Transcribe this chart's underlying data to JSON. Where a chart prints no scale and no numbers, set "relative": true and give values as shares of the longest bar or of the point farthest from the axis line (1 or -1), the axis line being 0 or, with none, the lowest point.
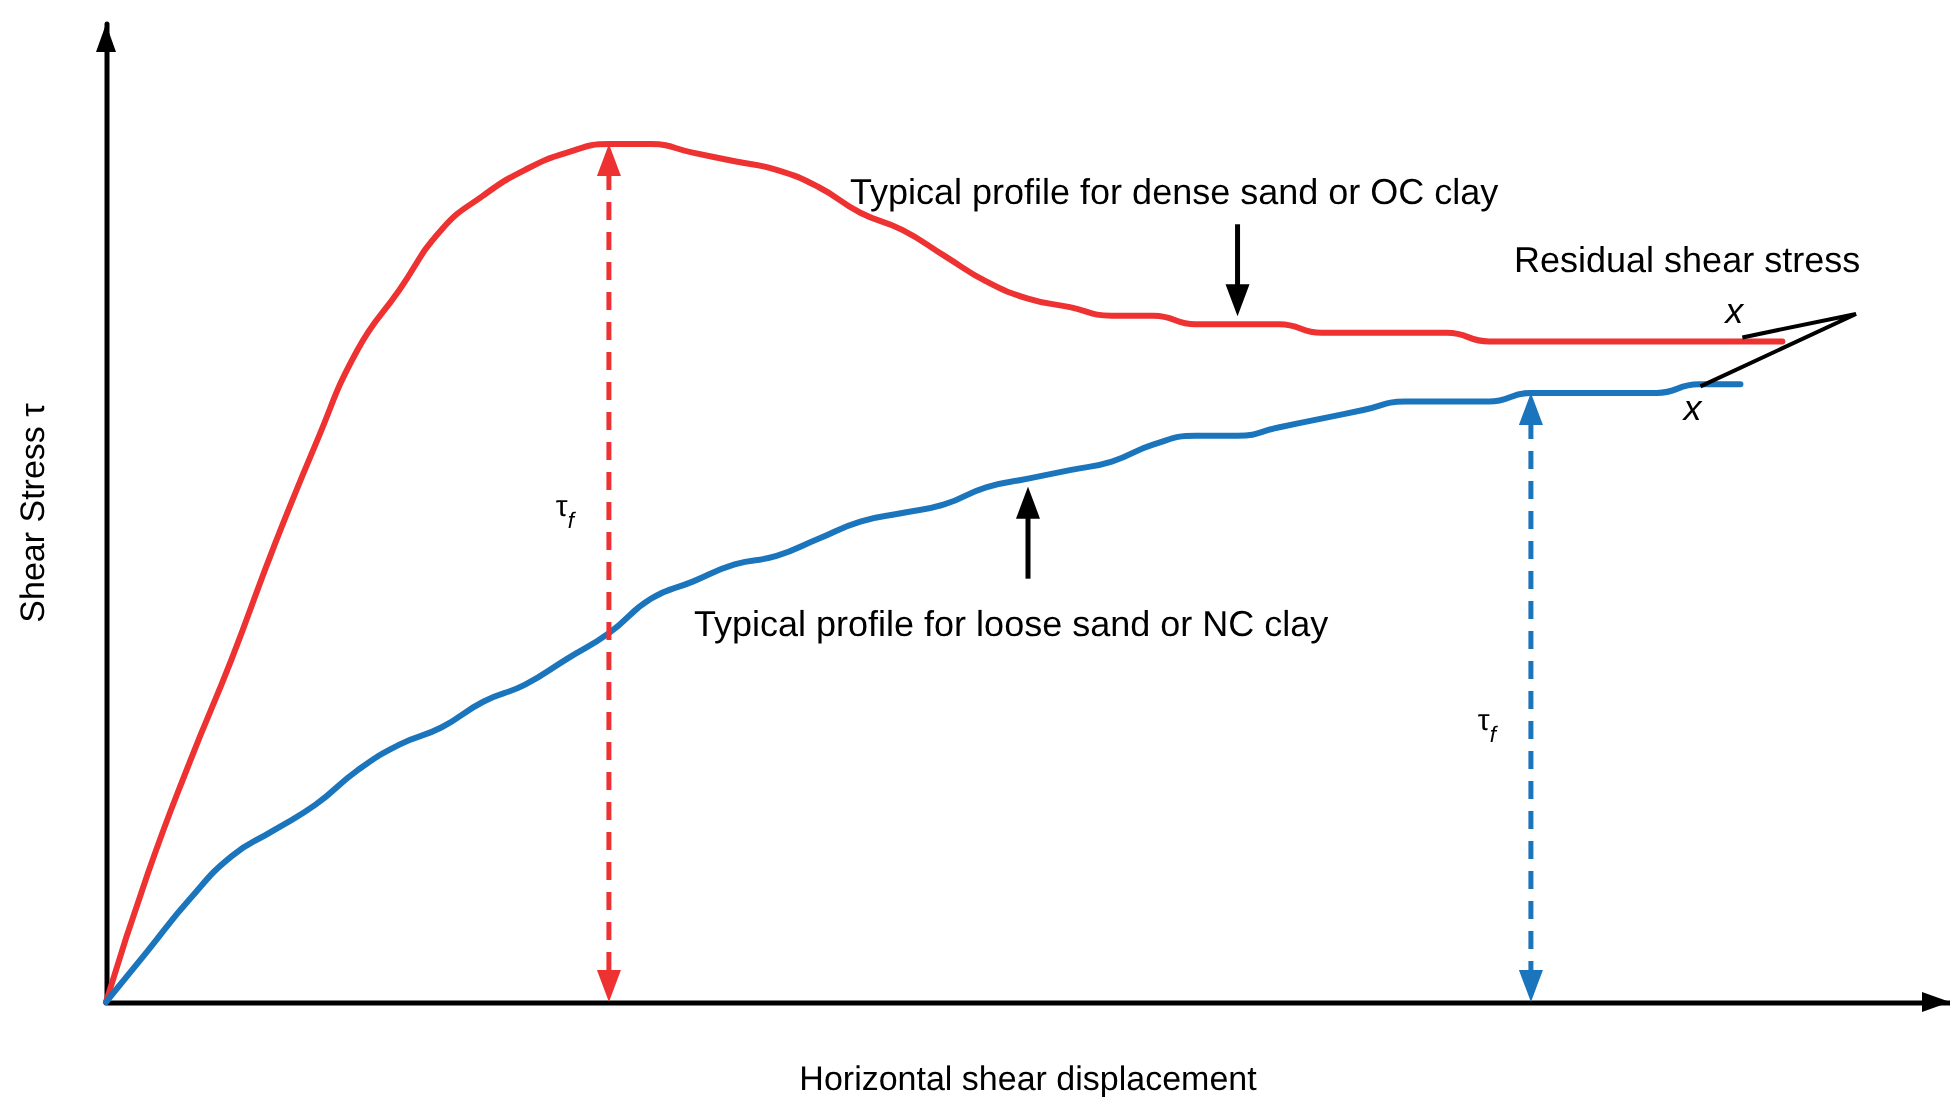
{
  "chart_data": {
    "type": "line",
    "relative": true,
    "xlabel": "Horizontal shear displacement",
    "ylabel": "Shear Stress τ",
    "grid": false,
    "marker": "none",
    "categories": [
      null,
      null,
      null,
      null,
      null,
      null,
      null,
      null,
      null,
      null,
      null,
      null,
      null,
      null,
      null,
      null,
      null,
      null,
      null,
      null,
      null,
      null,
      null,
      null,
      null,
      null,
      null,
      null,
      null,
      null,
      null,
      null,
      null,
      null,
      null,
      null,
      null,
      null,
      null,
      null,
      null,
      null,
      null,
      null,
      null
    ],
    "series": [
      {
        "color": "#ee3131",
        "values": [
          0,
          0.15,
          0.28,
          0.4,
          0.53,
          0.65,
          0.76,
          0.83,
          0.9,
          0.94,
          0.97,
          0.99,
          1,
          1,
          0.99,
          0.98,
          0.97,
          0.95,
          0.92,
          0.9,
          0.87,
          0.84,
          0.82,
          0.81,
          0.8,
          0.8,
          0.79,
          0.79,
          0.79,
          0.78,
          0.78,
          0.78,
          0.78,
          0.77,
          0.77,
          0.77,
          0.77,
          0.77,
          0.77,
          0.77,
          0.77,
          null,
          null,
          null,
          null
        ]
      },
      {
        "color": "#1a75bc",
        "values": [
          0,
          0.06,
          0.12,
          0.17,
          0.2,
          0.23,
          0.27,
          0.3,
          0.32,
          0.35,
          0.37,
          0.4,
          0.43,
          0.47,
          0.49,
          0.51,
          0.52,
          0.54,
          0.56,
          0.57,
          0.58,
          0.6,
          0.61,
          0.62,
          0.63,
          0.65,
          0.66,
          0.66,
          0.67,
          0.68,
          0.69,
          0.7,
          0.7,
          0.7,
          0.71,
          0.71,
          0.71,
          0.71,
          0.72,
          0.72,
          null,
          null,
          null,
          null,
          null
        ]
      }
    ],
    "annotations": [
      "Typical profile for dense sand or OC clay",
      "Typical profile for loose sand or NC clay",
      "Residual shear stress",
      "x",
      "x",
      "τ$_{f}$",
      "τ$_{f}$"
    ]
  }
}
